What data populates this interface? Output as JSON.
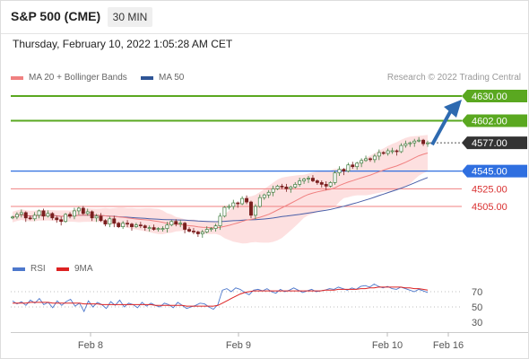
{
  "header": {
    "title": "S&P 500 (CME)",
    "timeframe": "30 MIN"
  },
  "datetime": "Thursday, February 10, 2022 1:05:28 AM CET",
  "legend": {
    "ma20": "MA 20 + Bollinger Bands",
    "ma50": "MA 50"
  },
  "credit": "Research © 2022 Trading Central",
  "rsi_legend": {
    "rsi": "RSI",
    "ma9": "9MA"
  },
  "colors": {
    "resistance": "#5aa820",
    "support": "#2f6fe0",
    "last": "#333333",
    "target": "#d93030",
    "ma20": "#f08080",
    "ma50": "#4a5fa8",
    "band": "#fcd6d6",
    "candle_up": "#3f7d3f",
    "candle_down": "#7a1f1f",
    "arrow": "#2e6ab0",
    "rsi": "#4d78cc",
    "ma9": "#dd2222"
  },
  "chart_data": [
    {
      "type": "candlestick",
      "y_range": [
        4470,
        4645
      ],
      "x_ticks": [
        "Feb 8",
        "Feb 9",
        "Feb 10",
        "Feb 16"
      ],
      "levels": [
        {
          "value": 4630.0,
          "label": "4630.00",
          "kind": "resistance"
        },
        {
          "value": 4602.0,
          "label": "4602.00",
          "kind": "resistance"
        },
        {
          "value": 4577.0,
          "label": "4577.00",
          "kind": "last"
        },
        {
          "value": 4545.0,
          "label": "4545.00",
          "kind": "support"
        },
        {
          "value": 4525.0,
          "label": "4525.00",
          "kind": "target"
        },
        {
          "value": 4505.0,
          "label": "4505.00",
          "kind": "target"
        }
      ],
      "close_path": [
        4493,
        4496,
        4498,
        4492,
        4491,
        4495,
        4500,
        4494,
        4497,
        4492,
        4490,
        4488,
        4496,
        4494,
        4500,
        4503,
        4497,
        4499,
        4492,
        4494,
        4489,
        4485,
        4491,
        4486,
        4482,
        4486,
        4485,
        4482,
        4484,
        4483,
        4481,
        4481,
        4479,
        4480,
        4480,
        4484,
        4488,
        4485,
        4486,
        4479,
        4477,
        4476,
        4474,
        4476,
        4479,
        4480,
        4483,
        4494,
        4504,
        4505,
        4509,
        4508,
        4514,
        4510,
        4495,
        4505,
        4515,
        4518,
        4521,
        4525,
        4528,
        4527,
        4525,
        4527,
        4530,
        4534,
        4536,
        4537,
        4534,
        4532,
        4530,
        4528,
        4532,
        4543,
        4547,
        4545,
        4552,
        4550,
        4554,
        4557,
        4559,
        4558,
        4562,
        4566,
        4565,
        4568,
        4568,
        4567,
        4574,
        4576,
        4577,
        4579,
        4580,
        4576,
        4577
      ],
      "forecast_target": 4630.0
    },
    {
      "type": "line",
      "name": "RSI",
      "y_range": [
        22,
        82
      ],
      "y_ticks": [
        70,
        50,
        30
      ],
      "overbought": 70,
      "midline": 50,
      "series": [
        {
          "name": "RSI",
          "values": [
            58,
            54,
            57,
            52,
            59,
            55,
            61,
            53,
            56,
            49,
            58,
            52,
            57,
            60,
            51,
            55,
            44,
            58,
            50,
            56,
            53,
            48,
            57,
            52,
            59,
            50,
            55,
            53,
            49,
            56,
            51,
            55,
            52,
            50,
            55,
            53,
            49,
            56,
            52,
            48,
            50,
            52,
            55,
            54,
            50,
            47,
            53,
            72,
            74,
            70,
            75,
            73,
            69,
            66,
            72,
            73,
            71,
            74,
            70,
            68,
            73,
            70,
            72,
            75,
            72,
            69,
            71,
            73,
            70,
            71,
            72,
            74,
            73,
            76,
            74,
            72,
            75,
            73,
            77,
            78,
            76,
            80,
            77,
            75,
            77,
            74,
            73,
            76,
            74,
            72,
            70,
            73,
            71,
            69
          ]
        },
        {
          "name": "9MA",
          "values": [
            55,
            55,
            55,
            55,
            56,
            56,
            56,
            56,
            56,
            55,
            55,
            55,
            55,
            55,
            55,
            55,
            54,
            54,
            54,
            54,
            53,
            53,
            53,
            53,
            53,
            53,
            53,
            53,
            53,
            53,
            53,
            53,
            52,
            52,
            52,
            52,
            52,
            52,
            52,
            51,
            51,
            51,
            51,
            51,
            51,
            51,
            52,
            55,
            58,
            61,
            64,
            67,
            69,
            70,
            71,
            71,
            71,
            71,
            71,
            71,
            71,
            71,
            71,
            71,
            71,
            71,
            71,
            71,
            71,
            71,
            72,
            72,
            72,
            73,
            73,
            73,
            73,
            73,
            74,
            74,
            75,
            75,
            76,
            76,
            76,
            76,
            76,
            76,
            75,
            75,
            74,
            74,
            73,
            72
          ]
        }
      ]
    }
  ]
}
